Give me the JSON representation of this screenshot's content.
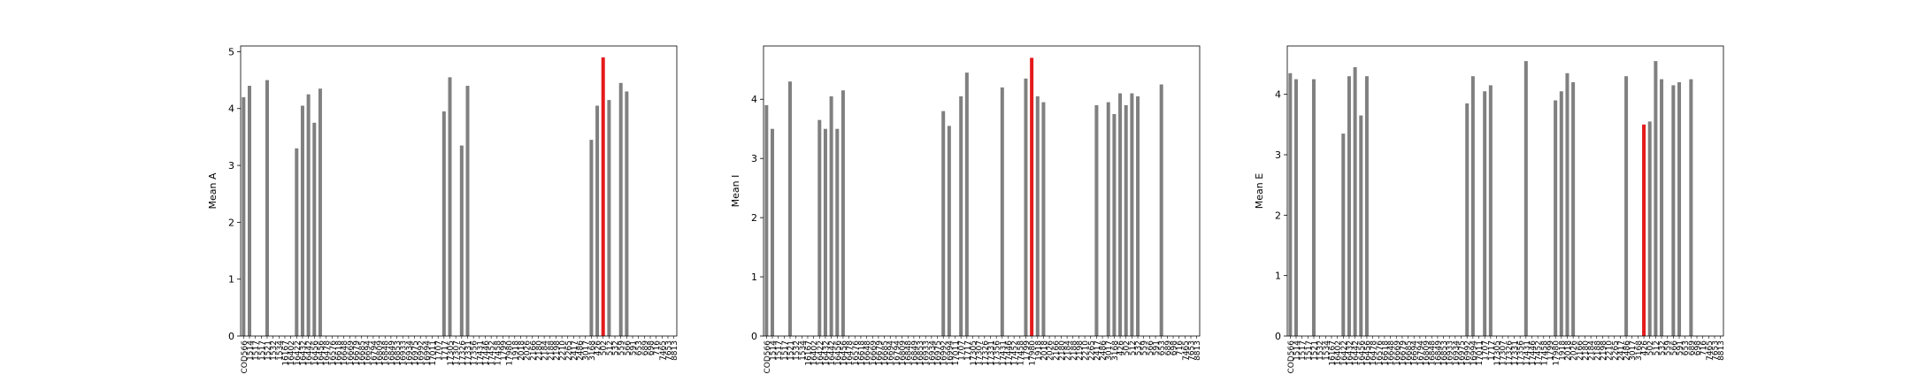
{
  "chart_data": [
    {
      "type": "bar",
      "ylabel": "Mean A",
      "ylim": [
        0,
        5.1
      ],
      "yticks": [
        0,
        1,
        2,
        3,
        4,
        5
      ],
      "highlight_index": 61,
      "highlight_color": "#e41a1c",
      "bar_color": "#808080",
      "categories": [
        "COD566",
        "1514",
        "1517",
        "1517",
        "1521",
        "1532",
        "1534",
        "16167",
        "16402",
        "16422",
        "16432",
        "16442",
        "16456",
        "16456",
        "16478",
        "16576",
        "16618",
        "16648",
        "16669",
        "16679",
        "16685",
        "16694",
        "16794",
        "16809",
        "16848",
        "16849",
        "16853",
        "16933",
        "16934",
        "16975",
        "16992",
        "16994",
        "17011",
        "1707",
        "1717",
        "17305",
        "17307",
        "17326",
        "17331",
        "17356",
        "17431",
        "17446",
        "17452",
        "17458",
        "1799",
        "17980",
        "1918",
        "2018",
        "2026",
        "2166",
        "2180",
        "2184",
        "2188",
        "2198",
        "2210",
        "2265",
        "2417",
        "2486",
        "3017",
        "3168",
        "426",
        "502",
        "512",
        "532",
        "559",
        "566",
        "591",
        "653",
        "689",
        "698",
        "716",
        "7465",
        "7653",
        "8813"
      ],
      "values": [
        4.2,
        4.4,
        0,
        0,
        4.5,
        0,
        0,
        0,
        0,
        3.3,
        4.05,
        4.25,
        3.75,
        4.35,
        0,
        0,
        0,
        0,
        0,
        0,
        0,
        0,
        0,
        0,
        0,
        0,
        0,
        0,
        0,
        0,
        0,
        0,
        0,
        0,
        3.95,
        4.55,
        0,
        3.35,
        4.4,
        0,
        0,
        0,
        0,
        0,
        0,
        0,
        0,
        0,
        0,
        0,
        0,
        0,
        0,
        0,
        0,
        0,
        0,
        0,
        0,
        3.45,
        4.05,
        4.9,
        4.15,
        0,
        4.45,
        4.3,
        0,
        0,
        0,
        0,
        0,
        0,
        0,
        0
      ]
    },
    {
      "type": "bar",
      "ylabel": "Mean I",
      "ylim": [
        0,
        4.9
      ],
      "yticks": [
        0,
        1,
        2,
        3,
        4
      ],
      "highlight_index": 45,
      "highlight_color": "#e41a1c",
      "bar_color": "#808080",
      "categories": [
        "COD566",
        "1514",
        "1517",
        "1517",
        "1521",
        "1532",
        "1534",
        "16167",
        "16402",
        "16422",
        "16432",
        "16442",
        "16456",
        "16456",
        "16478",
        "16576",
        "16618",
        "16648",
        "16669",
        "16679",
        "16685",
        "16694",
        "16794",
        "16809",
        "16848",
        "16849",
        "16853",
        "16933",
        "16934",
        "16975",
        "16992",
        "16994",
        "17011",
        "1707",
        "1717",
        "17305",
        "17307",
        "17326",
        "17331",
        "17356",
        "17431",
        "17446",
        "17452",
        "17458",
        "1799",
        "17980",
        "1918",
        "2018",
        "2026",
        "2166",
        "2180",
        "2184",
        "2188",
        "2198",
        "2210",
        "2265",
        "2417",
        "2486",
        "3017",
        "3168",
        "426",
        "502",
        "512",
        "532",
        "559",
        "566",
        "591",
        "653",
        "689",
        "698",
        "716",
        "7465",
        "7653",
        "8813"
      ],
      "values": [
        3.9,
        3.5,
        0,
        0,
        4.3,
        0,
        0,
        0,
        0,
        3.65,
        3.5,
        4.05,
        3.5,
        4.15,
        0,
        0,
        0,
        0,
        0,
        0,
        0,
        0,
        0,
        0,
        0,
        0,
        0,
        0,
        0,
        0,
        3.8,
        3.55,
        0,
        4.05,
        4.45,
        0,
        0,
        0,
        0,
        0,
        4.2,
        0,
        0,
        0,
        4.35,
        4.7,
        4.05,
        3.95,
        0,
        0,
        0,
        0,
        0,
        0,
        0,
        0,
        3.9,
        0,
        3.95,
        3.75,
        4.1,
        3.9,
        4.1,
        4.05,
        0,
        0,
        0,
        4.25,
        0,
        0,
        0,
        0,
        0,
        0
      ]
    },
    {
      "type": "bar",
      "ylabel": "Mean E",
      "ylim": [
        0,
        4.8
      ],
      "yticks": [
        0,
        1,
        2,
        3,
        4
      ],
      "highlight_index": 60,
      "highlight_color": "#e41a1c",
      "bar_color": "#808080",
      "categories": [
        "COD566",
        "1514",
        "1517",
        "1517",
        "1521",
        "1532",
        "1534",
        "16167",
        "16402",
        "16422",
        "16432",
        "16442",
        "16456",
        "16456",
        "16478",
        "16576",
        "16618",
        "16648",
        "16669",
        "16679",
        "16685",
        "16694",
        "16794",
        "16809",
        "16848",
        "16849",
        "16853",
        "16933",
        "16934",
        "16975",
        "16992",
        "16994",
        "17011",
        "1707",
        "1717",
        "17305",
        "17307",
        "17326",
        "17331",
        "17356",
        "17431",
        "17446",
        "17452",
        "17458",
        "1799",
        "17980",
        "1918",
        "2018",
        "2026",
        "2166",
        "2180",
        "2184",
        "2188",
        "2198",
        "2210",
        "2265",
        "2417",
        "2486",
        "3017",
        "3168",
        "426",
        "502",
        "512",
        "532",
        "559",
        "566",
        "591",
        "653",
        "689",
        "698",
        "716",
        "7465",
        "7653",
        "8813"
      ],
      "values": [
        4.35,
        4.25,
        0,
        0,
        4.25,
        0,
        0,
        0,
        0,
        3.35,
        4.3,
        4.45,
        3.65,
        4.3,
        0,
        0,
        0,
        0,
        0,
        0,
        0,
        0,
        0,
        0,
        0,
        0,
        0,
        0,
        0,
        0,
        3.85,
        4.3,
        0,
        4.05,
        4.15,
        0,
        0,
        0,
        0,
        0,
        4.55,
        0,
        0,
        0,
        0,
        3.9,
        4.05,
        4.35,
        4.2,
        0,
        0,
        0,
        0,
        0,
        0,
        0,
        0,
        4.3,
        0,
        0,
        3.5,
        3.55,
        4.55,
        4.25,
        0,
        4.15,
        4.2,
        0,
        4.25,
        0,
        0,
        0,
        0,
        0
      ]
    }
  ]
}
